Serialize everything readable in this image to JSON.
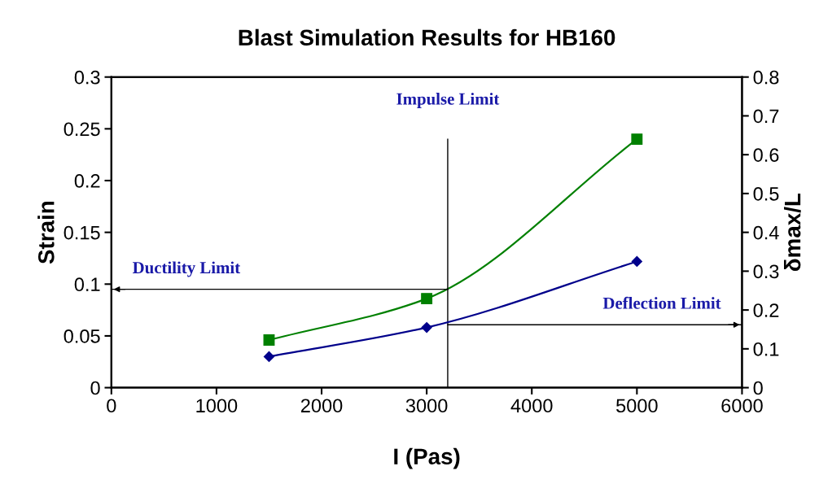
{
  "chart_data": {
    "type": "line",
    "title": "Blast Simulation Results for HB160",
    "xlabel": "I (Pas)",
    "ylabel": "Strain",
    "y2label": "δmax/L",
    "x": [
      1500,
      3000,
      5000
    ],
    "series": [
      {
        "color": "#008000",
        "values": [
          0.046,
          0.086,
          0.24
        ],
        "marker": "square"
      },
      {
        "color": "#00008b",
        "values": [
          0.08,
          0.155,
          0.325
        ],
        "marker": "diamond",
        "axis": "y2"
      }
    ],
    "xlim": [
      0,
      6000
    ],
    "xticks": [
      0,
      1000,
      2000,
      3000,
      4000,
      5000,
      6000
    ],
    "ylim": [
      0,
      0.3
    ],
    "yticks": [
      0,
      0.05,
      0.1,
      0.15,
      0.2,
      0.25,
      0.3
    ],
    "y2lim": [
      0,
      0.8
    ],
    "y2ticks": [
      0,
      0.1,
      0.2,
      0.3,
      0.4,
      0.5,
      0.6,
      0.7,
      0.8
    ],
    "ref_lines": [
      {
        "axis": "x",
        "value": 3200,
        "label": "Impulse Limit",
        "color": "#000000"
      },
      {
        "axis": "y",
        "value": 0.095,
        "label": "Ductility Limit",
        "color": "#000000"
      },
      {
        "axis": "y2",
        "value": 0.162,
        "label": "Deflection Limit",
        "color": "#000000"
      }
    ],
    "grid": false,
    "legend": false,
    "line_style": "solid"
  }
}
